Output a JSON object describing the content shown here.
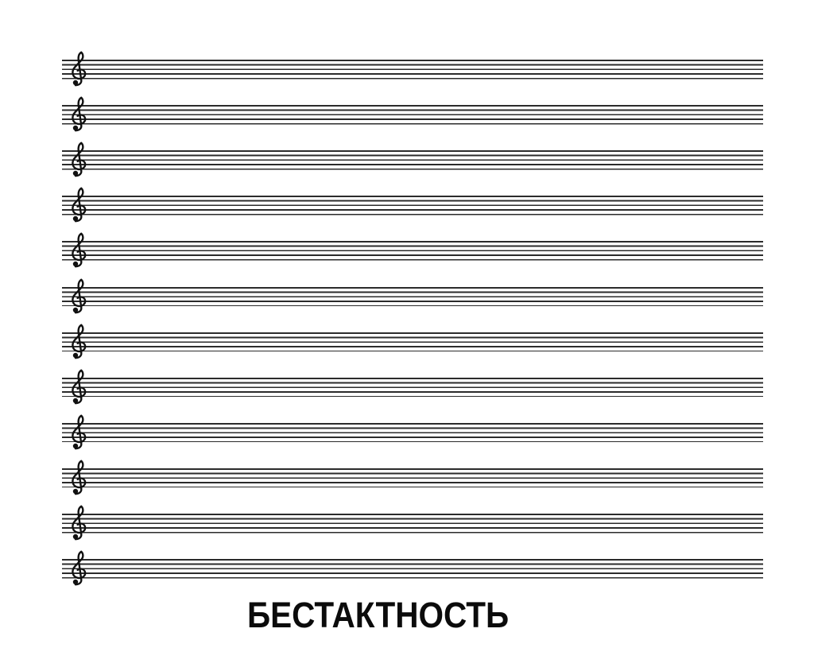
{
  "page": {
    "background_color": "#ffffff",
    "caption": "БЕСТАКТНОСТЬ",
    "caption_color": "#0b0b0b"
  },
  "sheet": {
    "staff_count": 12,
    "lines_per_staff": 5,
    "clef_icon": "treble-clef",
    "line_color": "#2b2b2b"
  }
}
